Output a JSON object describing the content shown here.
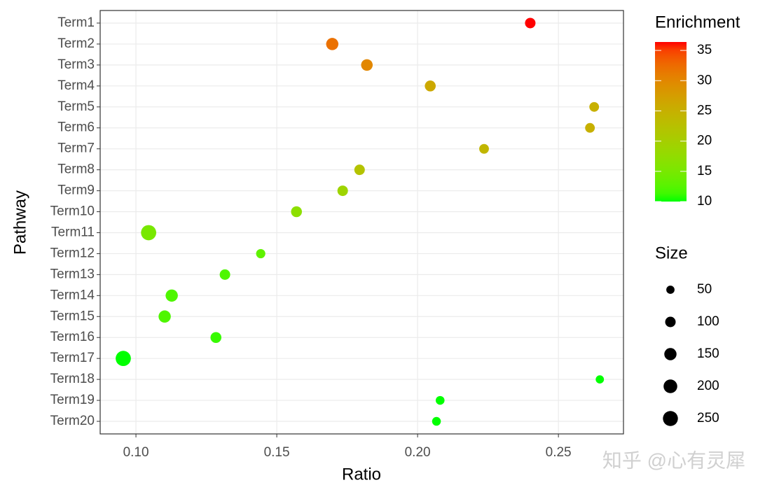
{
  "chart_data": {
    "type": "scatter",
    "x_label": "Ratio",
    "y_label": "Pathway",
    "categories": [
      "Term1",
      "Term2",
      "Term3",
      "Term4",
      "Term5",
      "Term6",
      "Term7",
      "Term8",
      "Term9",
      "Term10",
      "Term11",
      "Term12",
      "Term13",
      "Term14",
      "Term15",
      "Term16",
      "Term17",
      "Term18",
      "Term19",
      "Term20"
    ],
    "x": [
      0.24,
      0.1697,
      0.182,
      0.2045,
      0.2627,
      0.2612,
      0.2236,
      0.1794,
      0.1734,
      0.157,
      0.1045,
      0.1443,
      0.1316,
      0.1127,
      0.1102,
      0.1284,
      0.0955,
      0.2647,
      0.208,
      0.2067
    ],
    "enrichment": [
      36.4,
      32,
      30,
      26,
      25,
      25,
      24,
      22,
      19,
      17,
      15,
      13,
      12,
      12,
      12,
      11,
      10,
      10,
      10,
      10
    ],
    "size": [
      100,
      150,
      130,
      110,
      80,
      80,
      80,
      100,
      100,
      110,
      260,
      70,
      100,
      150,
      150,
      110,
      260,
      50,
      60,
      60
    ],
    "xlim": [
      0.0873,
      0.2731
    ],
    "xticks": [
      {
        "value": 0.1,
        "label": "0.10"
      },
      0.15,
      {
        "value": 0.2,
        "label": "0.20"
      },
      0.25
    ],
    "grid": true,
    "color_legend_title": "Enrichment",
    "color_lim": [
      10,
      36.4
    ],
    "color_ticks": [
      10,
      15,
      20,
      25,
      30,
      35
    ],
    "color_low": "#00ff00",
    "color_high": "#ff0000",
    "size_legend_title": "Size",
    "size_ticks": [
      50,
      100,
      150,
      200,
      250
    ],
    "watermark": "知乎 @心有灵犀"
  }
}
